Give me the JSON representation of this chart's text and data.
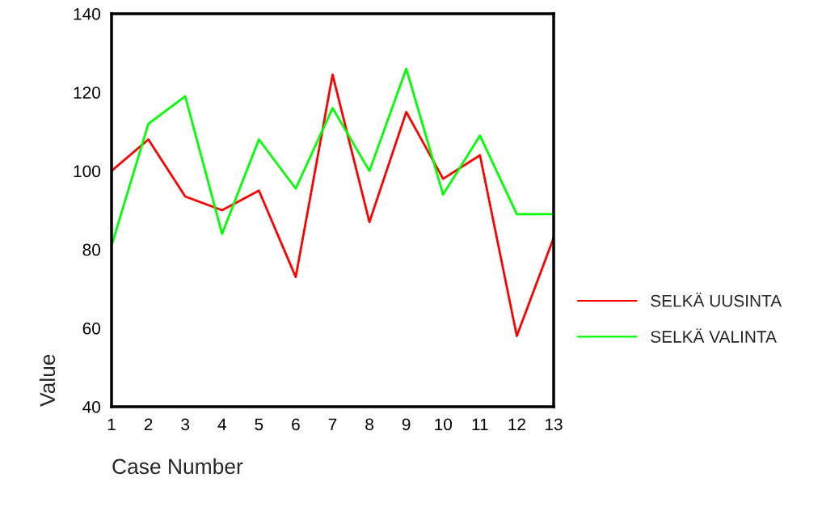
{
  "chart_data": {
    "type": "line",
    "xlabel": "Case Number",
    "ylabel": "Value",
    "x": [
      1,
      2,
      3,
      4,
      5,
      6,
      7,
      8,
      9,
      10,
      11,
      12,
      13
    ],
    "series": [
      {
        "name": "SELKÄ UUSINTA",
        "color": "#ff0000",
        "values": [
          100,
          108,
          93.5,
          90,
          95,
          73,
          124.5,
          87,
          115,
          98,
          104,
          58,
          83
        ]
      },
      {
        "name": "SELKÄ VALINTA",
        "color": "#00ff00",
        "values": [
          81,
          112,
          119,
          84,
          108,
          95.5,
          116,
          100,
          126,
          94,
          109,
          89,
          89
        ]
      }
    ],
    "xlim": [
      1,
      13
    ],
    "xticks": [
      1,
      2,
      3,
      4,
      5,
      6,
      7,
      8,
      9,
      10,
      11,
      12,
      13
    ],
    "ylim": [
      40,
      140
    ],
    "yticks": [
      40,
      60,
      80,
      100,
      120,
      140
    ],
    "grid": false,
    "legend": "right",
    "marker": "none",
    "line_style": "solid"
  }
}
